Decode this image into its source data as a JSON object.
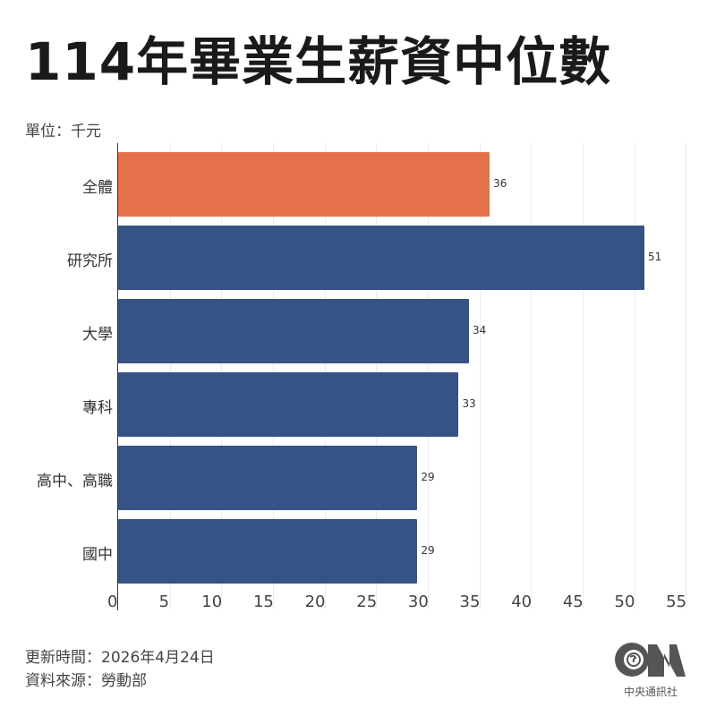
{
  "title": "114年畢業生薪資中位數",
  "unit": "單位：千元",
  "footer": {
    "updated": "更新時間：2026年4月24日",
    "source": "資料來源：勞動部",
    "logo_text": "中央通訊社",
    "logo_icon": "cna-logo-icon"
  },
  "colors": {
    "highlight": "#E5714A",
    "primary": "#355385",
    "grid": "#ECECEC"
  },
  "chart_data": {
    "type": "bar",
    "orientation": "horizontal",
    "title": "114年畢業生薪資中位數",
    "xlabel": "",
    "ylabel": "",
    "unit": "千元",
    "categories": [
      "全體",
      "研究所",
      "大學",
      "專科",
      "高中、高職",
      "國中"
    ],
    "values": [
      36,
      51,
      34,
      33,
      29,
      29
    ],
    "value_labels": [
      "36",
      "51",
      "34",
      "33",
      "29",
      "29"
    ],
    "xlim": [
      0,
      55
    ],
    "xticks": [
      "0",
      "5",
      "10",
      "15",
      "20",
      "25",
      "30",
      "35",
      "40",
      "45",
      "50",
      "55"
    ],
    "grid": true,
    "legend": "none",
    "highlight_category": "全體"
  }
}
